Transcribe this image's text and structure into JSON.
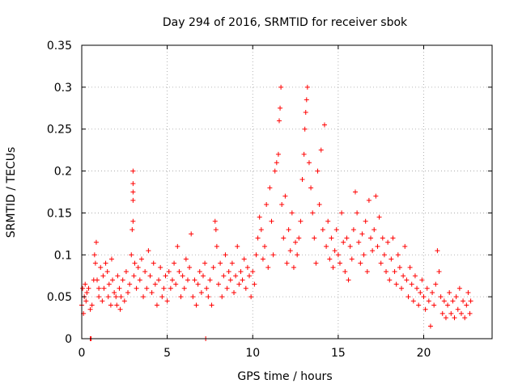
{
  "chart_data": {
    "type": "scatter",
    "title": "Day 294 of 2016, SRMTID for receiver sbok",
    "xlabel": "GPS time / hours",
    "ylabel": "SRMTID / TECUs",
    "xlim": [
      0,
      24
    ],
    "ylim": [
      0,
      0.35
    ],
    "xticks": [
      0,
      5,
      10,
      15,
      20
    ],
    "xtick_labels": [
      "0",
      "5",
      "10",
      "15",
      "20"
    ],
    "yticks": [
      0,
      0.05,
      0.1,
      0.15,
      0.2,
      0.25,
      0.3,
      0.35
    ],
    "ytick_labels": [
      "0",
      "0.05",
      "0.1",
      "0.15",
      "0.2",
      "0.25",
      "0.3",
      "0.35"
    ],
    "grid": true,
    "marker": "+",
    "color": "#ff0000",
    "series": [
      {
        "name": "SRMTID",
        "points": [
          [
            0.0,
            0.04
          ],
          [
            0.05,
            0.06
          ],
          [
            0.1,
            0.03
          ],
          [
            0.15,
            0.05
          ],
          [
            0.2,
            0.065
          ],
          [
            0.25,
            0.045
          ],
          [
            0.3,
            0.055
          ],
          [
            0.4,
            0.06
          ],
          [
            0.5,
            0.035
          ],
          [
            0.5,
            0.0
          ],
          [
            0.55,
            0.0
          ],
          [
            0.6,
            0.04
          ],
          [
            0.7,
            0.07
          ],
          [
            0.75,
            0.1
          ],
          [
            0.8,
            0.09
          ],
          [
            0.85,
            0.115
          ],
          [
            0.9,
            0.07
          ],
          [
            1.0,
            0.06
          ],
          [
            1.0,
            0.05
          ],
          [
            1.1,
            0.085
          ],
          [
            1.2,
            0.045
          ],
          [
            1.25,
            0.075
          ],
          [
            1.3,
            0.06
          ],
          [
            1.4,
            0.09
          ],
          [
            1.5,
            0.08
          ],
          [
            1.55,
            0.05
          ],
          [
            1.6,
            0.065
          ],
          [
            1.7,
            0.04
          ],
          [
            1.75,
            0.095
          ],
          [
            1.8,
            0.07
          ],
          [
            1.9,
            0.055
          ],
          [
            2.0,
            0.05
          ],
          [
            2.05,
            0.04
          ],
          [
            2.1,
            0.075
          ],
          [
            2.2,
            0.06
          ],
          [
            2.25,
            0.035
          ],
          [
            2.3,
            0.05
          ],
          [
            2.4,
            0.07
          ],
          [
            2.5,
            0.045
          ],
          [
            2.6,
            0.08
          ],
          [
            2.7,
            0.055
          ],
          [
            2.8,
            0.065
          ],
          [
            2.9,
            0.1
          ],
          [
            2.95,
            0.13
          ],
          [
            3.0,
            0.14
          ],
          [
            3.0,
            0.165
          ],
          [
            3.0,
            0.175
          ],
          [
            3.0,
            0.185
          ],
          [
            3.0,
            0.2
          ],
          [
            3.05,
            0.075
          ],
          [
            3.1,
            0.09
          ],
          [
            3.2,
            0.06
          ],
          [
            3.3,
            0.085
          ],
          [
            3.4,
            0.07
          ],
          [
            3.5,
            0.095
          ],
          [
            3.6,
            0.05
          ],
          [
            3.7,
            0.08
          ],
          [
            3.8,
            0.06
          ],
          [
            3.9,
            0.105
          ],
          [
            4.0,
            0.075
          ],
          [
            4.1,
            0.055
          ],
          [
            4.2,
            0.09
          ],
          [
            4.3,
            0.065
          ],
          [
            4.4,
            0.04
          ],
          [
            4.5,
            0.07
          ],
          [
            4.6,
            0.085
          ],
          [
            4.7,
            0.05
          ],
          [
            4.8,
            0.06
          ],
          [
            4.9,
            0.075
          ],
          [
            5.0,
            0.045
          ],
          [
            5.1,
            0.08
          ],
          [
            5.2,
            0.06
          ],
          [
            5.3,
            0.07
          ],
          [
            5.4,
            0.09
          ],
          [
            5.5,
            0.065
          ],
          [
            5.6,
            0.11
          ],
          [
            5.7,
            0.08
          ],
          [
            5.8,
            0.05
          ],
          [
            5.9,
            0.075
          ],
          [
            6.0,
            0.06
          ],
          [
            6.1,
            0.095
          ],
          [
            6.2,
            0.07
          ],
          [
            6.3,
            0.085
          ],
          [
            6.4,
            0.125
          ],
          [
            6.5,
            0.05
          ],
          [
            6.6,
            0.07
          ],
          [
            6.7,
            0.04
          ],
          [
            6.8,
            0.065
          ],
          [
            6.9,
            0.08
          ],
          [
            7.0,
            0.055
          ],
          [
            7.1,
            0.075
          ],
          [
            7.2,
            0.09
          ],
          [
            7.25,
            0.0
          ],
          [
            7.3,
            0.06
          ],
          [
            7.4,
            0.05
          ],
          [
            7.5,
            0.07
          ],
          [
            7.6,
            0.04
          ],
          [
            7.7,
            0.085
          ],
          [
            7.8,
            0.14
          ],
          [
            7.85,
            0.13
          ],
          [
            7.9,
            0.11
          ],
          [
            8.0,
            0.065
          ],
          [
            8.1,
            0.09
          ],
          [
            8.2,
            0.05
          ],
          [
            8.3,
            0.075
          ],
          [
            8.4,
            0.1
          ],
          [
            8.5,
            0.06
          ],
          [
            8.6,
            0.08
          ],
          [
            8.7,
            0.07
          ],
          [
            8.8,
            0.09
          ],
          [
            8.9,
            0.055
          ],
          [
            9.0,
            0.075
          ],
          [
            9.1,
            0.11
          ],
          [
            9.2,
            0.065
          ],
          [
            9.3,
            0.08
          ],
          [
            9.4,
            0.07
          ],
          [
            9.5,
            0.095
          ],
          [
            9.6,
            0.06
          ],
          [
            9.7,
            0.085
          ],
          [
            9.8,
            0.075
          ],
          [
            9.9,
            0.05
          ],
          [
            10.0,
            0.08
          ],
          [
            10.1,
            0.065
          ],
          [
            10.2,
            0.1
          ],
          [
            10.3,
            0.12
          ],
          [
            10.4,
            0.145
          ],
          [
            10.5,
            0.13
          ],
          [
            10.6,
            0.095
          ],
          [
            10.7,
            0.11
          ],
          [
            10.8,
            0.16
          ],
          [
            10.9,
            0.085
          ],
          [
            11.0,
            0.18
          ],
          [
            11.1,
            0.14
          ],
          [
            11.2,
            0.1
          ],
          [
            11.3,
            0.2
          ],
          [
            11.4,
            0.21
          ],
          [
            11.5,
            0.22
          ],
          [
            11.55,
            0.26
          ],
          [
            11.6,
            0.275
          ],
          [
            11.65,
            0.3
          ],
          [
            11.7,
            0.16
          ],
          [
            11.8,
            0.12
          ],
          [
            11.9,
            0.17
          ],
          [
            12.0,
            0.09
          ],
          [
            12.1,
            0.13
          ],
          [
            12.2,
            0.105
          ],
          [
            12.3,
            0.15
          ],
          [
            12.4,
            0.085
          ],
          [
            12.5,
            0.115
          ],
          [
            12.6,
            0.1
          ],
          [
            12.7,
            0.12
          ],
          [
            12.8,
            0.14
          ],
          [
            12.9,
            0.19
          ],
          [
            13.0,
            0.22
          ],
          [
            13.05,
            0.25
          ],
          [
            13.1,
            0.27
          ],
          [
            13.15,
            0.285
          ],
          [
            13.2,
            0.3
          ],
          [
            13.3,
            0.21
          ],
          [
            13.4,
            0.18
          ],
          [
            13.5,
            0.15
          ],
          [
            13.6,
            0.12
          ],
          [
            13.7,
            0.09
          ],
          [
            13.8,
            0.2
          ],
          [
            13.9,
            0.16
          ],
          [
            14.0,
            0.225
          ],
          [
            14.1,
            0.13
          ],
          [
            14.2,
            0.255
          ],
          [
            14.3,
            0.11
          ],
          [
            14.4,
            0.14
          ],
          [
            14.5,
            0.095
          ],
          [
            14.6,
            0.12
          ],
          [
            14.7,
            0.085
          ],
          [
            14.8,
            0.105
          ],
          [
            14.9,
            0.13
          ],
          [
            15.0,
            0.1
          ],
          [
            15.1,
            0.09
          ],
          [
            15.2,
            0.15
          ],
          [
            15.3,
            0.115
          ],
          [
            15.4,
            0.08
          ],
          [
            15.5,
            0.12
          ],
          [
            15.6,
            0.07
          ],
          [
            15.7,
            0.11
          ],
          [
            15.8,
            0.095
          ],
          [
            15.9,
            0.13
          ],
          [
            16.0,
            0.175
          ],
          [
            16.1,
            0.15
          ],
          [
            16.2,
            0.115
          ],
          [
            16.3,
            0.09
          ],
          [
            16.4,
            0.125
          ],
          [
            16.5,
            0.1
          ],
          [
            16.6,
            0.14
          ],
          [
            16.7,
            0.08
          ],
          [
            16.8,
            0.165
          ],
          [
            16.9,
            0.12
          ],
          [
            17.0,
            0.105
          ],
          [
            17.1,
            0.13
          ],
          [
            17.2,
            0.17
          ],
          [
            17.3,
            0.11
          ],
          [
            17.4,
            0.145
          ],
          [
            17.5,
            0.09
          ],
          [
            17.6,
            0.12
          ],
          [
            17.7,
            0.1
          ],
          [
            17.8,
            0.08
          ],
          [
            17.9,
            0.115
          ],
          [
            18.0,
            0.07
          ],
          [
            18.1,
            0.095
          ],
          [
            18.2,
            0.12
          ],
          [
            18.3,
            0.08
          ],
          [
            18.4,
            0.065
          ],
          [
            18.5,
            0.1
          ],
          [
            18.6,
            0.085
          ],
          [
            18.7,
            0.06
          ],
          [
            18.8,
            0.075
          ],
          [
            18.9,
            0.11
          ],
          [
            19.0,
            0.07
          ],
          [
            19.1,
            0.05
          ],
          [
            19.2,
            0.085
          ],
          [
            19.3,
            0.065
          ],
          [
            19.4,
            0.045
          ],
          [
            19.5,
            0.075
          ],
          [
            19.6,
            0.06
          ],
          [
            19.7,
            0.04
          ],
          [
            19.8,
            0.055
          ],
          [
            19.9,
            0.07
          ],
          [
            20.0,
            0.05
          ],
          [
            20.1,
            0.035
          ],
          [
            20.2,
            0.06
          ],
          [
            20.3,
            0.045
          ],
          [
            20.4,
            0.015
          ],
          [
            20.5,
            0.055
          ],
          [
            20.6,
            0.04
          ],
          [
            20.7,
            0.065
          ],
          [
            20.8,
            0.105
          ],
          [
            20.9,
            0.08
          ],
          [
            21.0,
            0.05
          ],
          [
            21.1,
            0.03
          ],
          [
            21.2,
            0.045
          ],
          [
            21.3,
            0.025
          ],
          [
            21.4,
            0.04
          ],
          [
            21.5,
            0.055
          ],
          [
            21.6,
            0.03
          ],
          [
            21.7,
            0.045
          ],
          [
            21.8,
            0.025
          ],
          [
            21.9,
            0.05
          ],
          [
            22.0,
            0.035
          ],
          [
            22.1,
            0.06
          ],
          [
            22.2,
            0.03
          ],
          [
            22.3,
            0.045
          ],
          [
            22.4,
            0.025
          ],
          [
            22.5,
            0.04
          ],
          [
            22.6,
            0.055
          ],
          [
            22.7,
            0.03
          ],
          [
            22.75,
            0.045
          ]
        ]
      }
    ]
  }
}
